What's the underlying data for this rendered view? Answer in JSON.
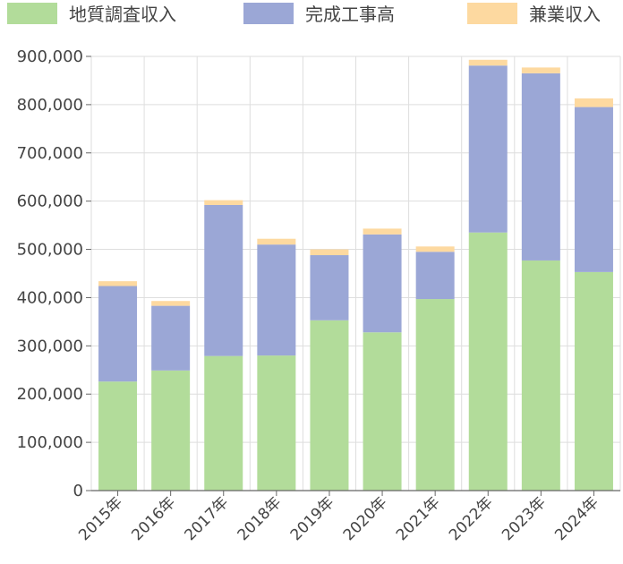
{
  "chart_data": {
    "type": "bar",
    "stacked": true,
    "categories": [
      "2015年",
      "2016年",
      "2017年",
      "2018年",
      "2019年",
      "2020年",
      "2021年",
      "2022年",
      "2023年",
      "2024年"
    ],
    "series": [
      {
        "name": "地質調査収入",
        "color": "#b2dc9a",
        "values": [
          226000,
          249000,
          279000,
          280000,
          353000,
          328000,
          397000,
          535000,
          477000,
          453000
        ]
      },
      {
        "name": "完成工事高",
        "color": "#9ba7d6",
        "values": [
          198000,
          134000,
          313000,
          230000,
          135000,
          203000,
          98000,
          346000,
          388000,
          342000
        ]
      },
      {
        "name": "兼業収入",
        "color": "#fdd9a0",
        "values": [
          10000,
          10000,
          10000,
          12000,
          12000,
          12000,
          11000,
          12000,
          12000,
          18000
        ]
      }
    ],
    "ylim": [
      0,
      900000
    ],
    "yticks": [
      "0",
      "100,000",
      "200,000",
      "300,000",
      "400,000",
      "500,000",
      "600,000",
      "700,000",
      "800,000",
      "900,000"
    ],
    "ytick_values": [
      0,
      100000,
      200000,
      300000,
      400000,
      500000,
      600000,
      700000,
      800000,
      900000
    ],
    "grid": true,
    "legend_position": "top"
  }
}
